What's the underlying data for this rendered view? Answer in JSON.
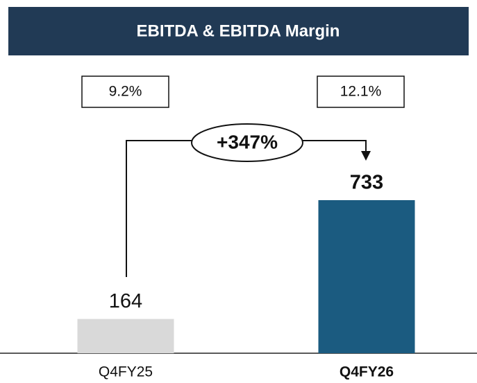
{
  "chart_data": {
    "type": "bar",
    "title": "EBITDA & EBITDA Margin",
    "categories": [
      "Q4FY25",
      "Q4FY26"
    ],
    "values": [
      164,
      733
    ],
    "colors": [
      "#d9d9d9",
      "#1b5b80"
    ],
    "margins": [
      9.2,
      12.1
    ],
    "margin_labels": [
      "9.2%",
      "12.1%"
    ],
    "annotation": "+347%"
  }
}
